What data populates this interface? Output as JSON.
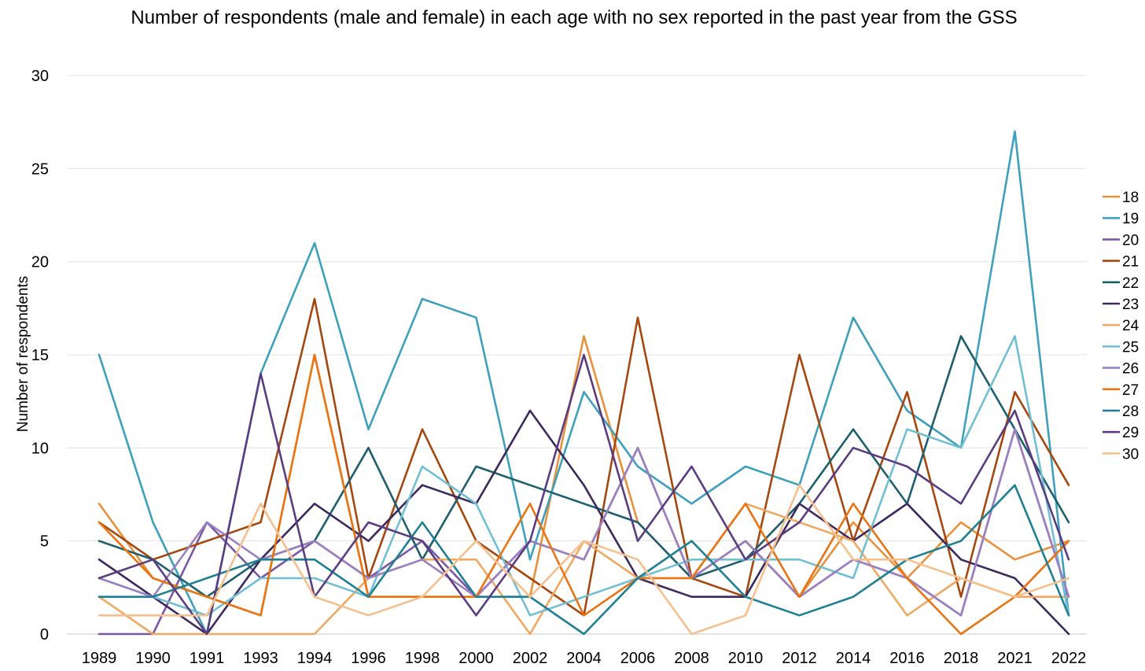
{
  "chart_data": {
    "type": "line",
    "title": "Number of respondents (male and female) in each age with no sex reported in the past year from the GSS",
    "xlabel": "",
    "ylabel": "Number of respondents",
    "ylim": [
      0,
      30
    ],
    "yticks": [
      "0",
      "5",
      "10",
      "15",
      "20",
      "25",
      "30"
    ],
    "grid": true,
    "legend": "right",
    "categories": [
      "1989",
      "1990",
      "1991",
      "1993",
      "1994",
      "1996",
      "1998",
      "2000",
      "2002",
      "2004",
      "2006",
      "2008",
      "2010",
      "2012",
      "2014",
      "2016",
      "2018",
      "2021",
      "2022"
    ],
    "series": [
      {
        "name": "18",
        "color": "#e8913a",
        "values": [
          7,
          3,
          2,
          1,
          15,
          2,
          2,
          2,
          2,
          16,
          6,
          3,
          5,
          2,
          6,
          3,
          6,
          4,
          5
        ]
      },
      {
        "name": "19",
        "color": "#3ea0bd",
        "values": [
          15,
          6,
          0,
          14,
          21,
          11,
          18,
          17,
          4,
          13,
          9,
          7,
          9,
          8,
          17,
          12,
          10,
          27,
          1
        ]
      },
      {
        "name": "20",
        "color": "#7b58a6",
        "values": [
          0,
          0,
          6,
          3,
          5,
          3,
          5,
          2,
          5,
          4,
          10,
          3,
          5,
          2,
          4,
          3,
          1,
          11,
          2
        ]
      },
      {
        "name": "21",
        "color": "#a4480f",
        "values": [
          6,
          4,
          5,
          6,
          18,
          3,
          11,
          5,
          3,
          1,
          17,
          3,
          2,
          15,
          5,
          13,
          2,
          13,
          8
        ]
      },
      {
        "name": "22",
        "color": "#1e5f6e",
        "values": [
          5,
          4,
          2,
          4,
          5,
          10,
          4,
          9,
          8,
          7,
          6,
          3,
          4,
          7,
          11,
          7,
          16,
          11,
          6
        ]
      },
      {
        "name": "23",
        "color": "#3c2a5e",
        "values": [
          4,
          2,
          0,
          4,
          7,
          5,
          8,
          7,
          12,
          8,
          3,
          2,
          2,
          7,
          5,
          7,
          4,
          3,
          0
        ]
      },
      {
        "name": "24",
        "color": "#f0a862",
        "values": [
          2,
          0,
          0,
          0,
          0,
          3,
          4,
          4,
          0,
          5,
          3,
          3,
          7,
          6,
          5,
          1,
          3,
          2,
          2
        ]
      },
      {
        "name": "25",
        "color": "#72bfd3",
        "values": [
          3,
          2,
          1,
          3,
          3,
          2,
          9,
          7,
          1,
          2,
          3,
          4,
          4,
          4,
          3,
          11,
          10,
          16,
          1
        ]
      },
      {
        "name": "26",
        "color": "#9a80c0",
        "values": [
          3,
          2,
          6,
          4,
          5,
          3,
          4,
          2,
          5,
          4,
          10,
          3,
          5,
          2,
          4,
          3,
          1,
          11,
          2
        ]
      },
      {
        "name": "27",
        "color": "#e87413",
        "values": [
          6,
          3,
          2,
          1,
          15,
          2,
          2,
          2,
          7,
          1,
          3,
          3,
          7,
          2,
          7,
          3,
          0,
          2,
          5
        ]
      },
      {
        "name": "28",
        "color": "#1f7f94",
        "values": [
          2,
          2,
          3,
          4,
          4,
          2,
          6,
          2,
          2,
          0,
          3,
          5,
          2,
          1,
          2,
          4,
          5,
          8,
          1
        ]
      },
      {
        "name": "29",
        "color": "#5a3c80",
        "values": [
          3,
          4,
          0,
          14,
          2,
          6,
          5,
          1,
          5,
          15,
          5,
          9,
          4,
          6,
          10,
          9,
          7,
          12,
          4
        ]
      },
      {
        "name": "30",
        "color": "#f5c08e",
        "values": [
          1,
          1,
          1,
          7,
          2,
          1,
          2,
          5,
          2,
          5,
          4,
          0,
          1,
          8,
          4,
          4,
          3,
          2,
          3
        ]
      }
    ]
  }
}
